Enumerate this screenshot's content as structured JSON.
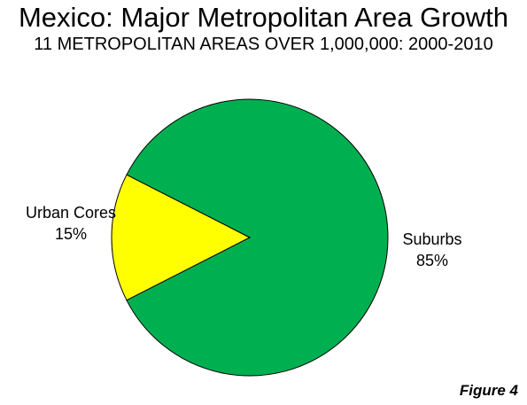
{
  "title": "Mexico: Major Metropolitan Area Growth",
  "subtitle": "11 METROPOLITAN AREAS OVER 1,000,000: 2000-2010",
  "figure_label": "Figure 4",
  "chart_data": {
    "type": "pie",
    "title": "Mexico: Major Metropolitan Area Growth",
    "subtitle": "11 METROPOLITAN AREAS OVER 1,000,000: 2000-2010",
    "slices": [
      {
        "label": "Urban Cores",
        "value": 15,
        "value_label": "15%",
        "color": "#ffff00"
      },
      {
        "label": "Suburbs",
        "value": 85,
        "value_label": "85%",
        "color": "#00b050"
      }
    ],
    "slice_border_color": "#000000",
    "legend": "none"
  }
}
